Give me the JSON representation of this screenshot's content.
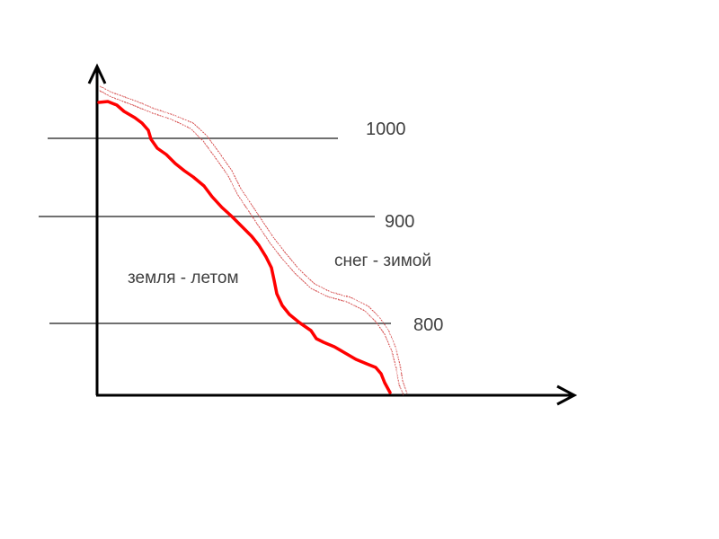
{
  "levels": [
    {
      "label": "1000"
    },
    {
      "label": "900"
    },
    {
      "label": "800"
    }
  ],
  "annotations": {
    "ground_summer": "земля - летом",
    "snow_winter": "снег - зимой"
  },
  "colors": {
    "background": "#ffffff",
    "axes": "#000000",
    "level_lines": "#404040",
    "ground_line": "#ff0000",
    "snow_line": "#d44a4a",
    "text": "#404040"
  }
}
